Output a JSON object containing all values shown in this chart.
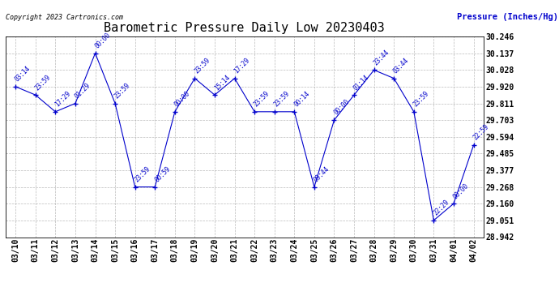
{
  "title": "Barometric Pressure Daily Low 20230403",
  "ylabel": "Pressure (Inches/Hg)",
  "copyright": "Copyright 2023 Cartronics.com",
  "line_color": "#0000cc",
  "background_color": "#ffffff",
  "grid_color": "#aaaaaa",
  "dates": [
    "03/10",
    "03/11",
    "03/12",
    "03/13",
    "03/14",
    "03/15",
    "03/16",
    "03/17",
    "03/18",
    "03/19",
    "03/20",
    "03/21",
    "03/22",
    "03/23",
    "03/24",
    "03/25",
    "03/26",
    "03/27",
    "03/28",
    "03/29",
    "03/30",
    "03/31",
    "04/01",
    "04/02"
  ],
  "values": [
    29.92,
    29.866,
    29.757,
    29.811,
    30.137,
    29.811,
    29.268,
    29.268,
    29.757,
    29.974,
    29.866,
    29.974,
    29.757,
    29.757,
    29.757,
    29.268,
    29.703,
    29.866,
    30.028,
    29.974,
    29.757,
    29.051,
    29.16,
    29.54
  ],
  "time_labels": [
    "03:14",
    "23:59",
    "17:29",
    "01:29",
    "00:00",
    "23:59",
    "23:59",
    "00:59",
    "00:00",
    "23:59",
    "15:14",
    "17:29",
    "23:59",
    "23:59",
    "00:14",
    "09:44",
    "00:00",
    "01:14",
    "23:44",
    "03:44",
    "23:59",
    "22:29",
    "00:00",
    "22:59"
  ],
  "ylim_min": 28.942,
  "ylim_max": 30.246,
  "yticks": [
    28.942,
    29.051,
    29.16,
    29.268,
    29.377,
    29.485,
    29.594,
    29.703,
    29.811,
    29.92,
    30.028,
    30.137,
    30.246
  ],
  "title_fontsize": 11,
  "tick_fontsize": 7,
  "marker_size": 4,
  "figwidth": 6.9,
  "figheight": 3.75,
  "dpi": 100
}
